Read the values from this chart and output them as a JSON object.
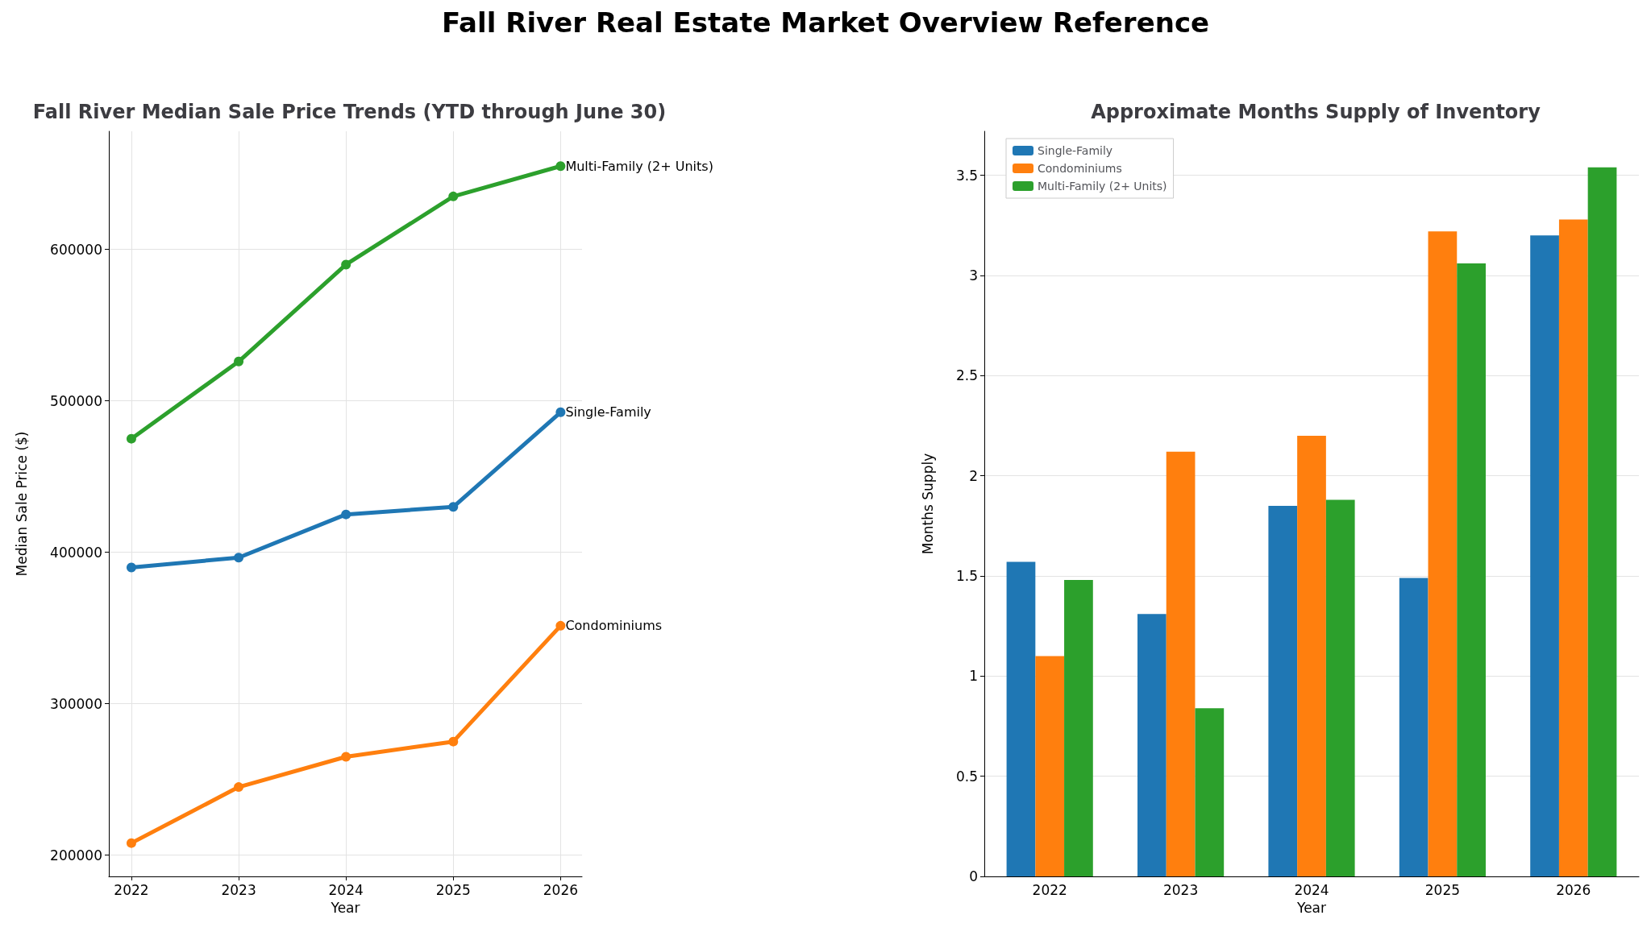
{
  "chart_data": [
    {
      "type": "line",
      "title": "Fall River Median Sale Price Trends (YTD through June 30)",
      "annotations": [
        "Fall River Real Estate Market Overview Reference"
      ],
      "xlabel": "Year",
      "ylabel": "Median Sale Price ($)",
      "x": [
        2022,
        2023,
        2024,
        2025,
        2026
      ],
      "xlim": [
        2021.79,
        2026.2
      ],
      "xticks": [
        2022,
        2023,
        2024,
        2025,
        2026
      ],
      "ylim": [
        186000,
        678000
      ],
      "yticks": [
        200000,
        300000,
        400000,
        500000,
        600000
      ],
      "grid": true,
      "legend": false,
      "marker": "circle",
      "line_style": "solid",
      "series": [
        {
          "name": "Single-Family",
          "color": "#1f77b4",
          "values": [
            390000,
            396500,
            425000,
            430000,
            492500
          ]
        },
        {
          "name": "Condominiums",
          "color": "#ff7f0e",
          "values": [
            208000,
            245000,
            265000,
            275000,
            351500
          ]
        },
        {
          "name": "Multi-Family (2+ Units)",
          "color": "#2ca02c",
          "values": [
            475000,
            526000,
            590000,
            635000,
            655000
          ]
        }
      ]
    },
    {
      "type": "bar",
      "title": "Approximate Months Supply of Inventory",
      "xlabel": "Year",
      "ylabel": "Months Supply",
      "categories": [
        "2022",
        "2023",
        "2024",
        "2025",
        "2026"
      ],
      "ylim": [
        0,
        3.72
      ],
      "yticks": [
        0,
        0.5,
        1,
        1.5,
        2,
        2.5,
        3,
        3.5
      ],
      "grid": "y",
      "legend": "top left",
      "series": [
        {
          "name": "Single-Family",
          "color": "#1f77b4",
          "values": [
            1.57,
            1.31,
            1.85,
            1.49,
            3.2
          ]
        },
        {
          "name": "Condominiums",
          "color": "#ff7f0e",
          "values": [
            1.1,
            2.12,
            2.2,
            3.22,
            3.28
          ]
        },
        {
          "name": "Multi-Family (2+ Units)",
          "color": "#2ca02c",
          "values": [
            1.48,
            0.84,
            1.88,
            3.06,
            3.54
          ]
        }
      ]
    }
  ]
}
